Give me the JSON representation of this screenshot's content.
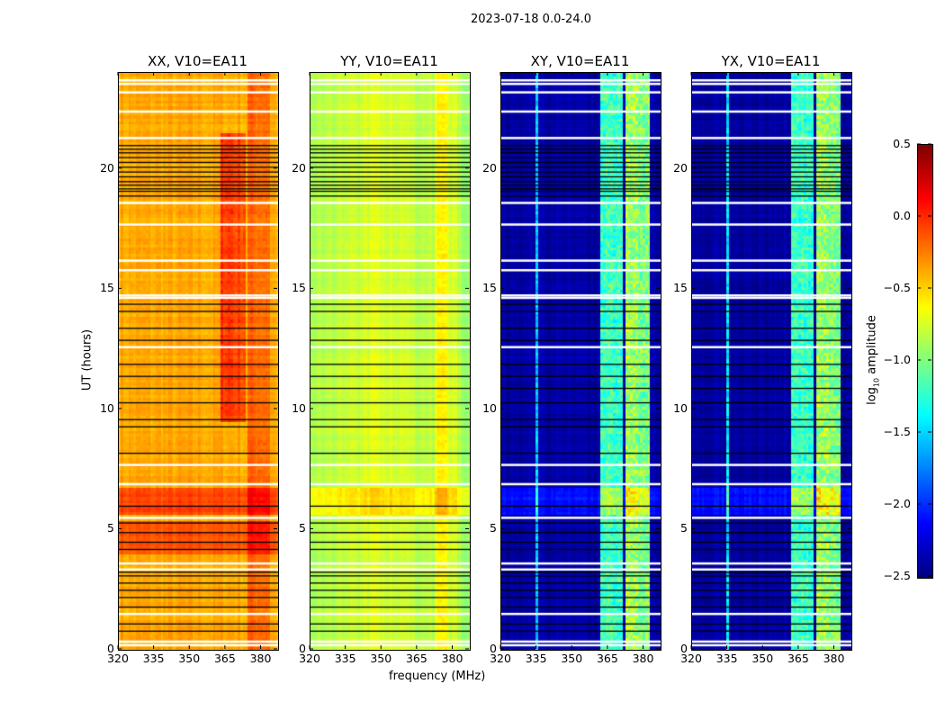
{
  "chart_data": {
    "type": "heatmap",
    "title": "2023-07-18 0.0-24.0",
    "xlabel": "frequency (MHz)",
    "ylabel": "UT (hours)",
    "xlim": [
      320,
      387
    ],
    "ylim": [
      0,
      24
    ],
    "xticks": [
      "320",
      "335",
      "350",
      "365",
      "380"
    ],
    "yticks": [
      "0",
      "5",
      "10",
      "15",
      "20"
    ],
    "colorbar": {
      "label_main": "log",
      "label_sub": "10",
      "label_rest": " amplitude",
      "range": [
        -2.5,
        0.5
      ],
      "ticks": [
        "0.5",
        "0.0",
        "−0.5",
        "−1.0",
        "−1.5",
        "−2.0",
        "−2.5"
      ],
      "colormap": "jet"
    },
    "flagged_white_hours": [
      0.2,
      0.35,
      1.5,
      3.35,
      3.6,
      5.5,
      6.9,
      7.7,
      12.6,
      14.65,
      14.75,
      15.8,
      16.2,
      17.7,
      18.6,
      21.3,
      22.4,
      23.2,
      23.55,
      23.7
    ],
    "flagged_black_hours": [
      0.8,
      1.1,
      1.8,
      2.2,
      2.5,
      2.8,
      3.1,
      3.25,
      4.2,
      4.5,
      4.9,
      5.3,
      6.0,
      8.2,
      9.3,
      9.6,
      10.3,
      10.9,
      11.4,
      11.9,
      12.9,
      13.4,
      14.1,
      14.4,
      18.9,
      19.1,
      19.2,
      19.35,
      19.5,
      19.7,
      19.9,
      20.1,
      20.3,
      20.5,
      20.7,
      20.85,
      21.0
    ],
    "panels": [
      {
        "title": "XX, V10=EA11",
        "base": -0.38,
        "time_offsets": [
          {
            "hours": [
              4.0,
              5.4
            ],
            "delta": 0.25
          },
          {
            "hours": [
              5.6,
              6.8
            ],
            "delta": 0.3
          }
        ],
        "bright_bands": [
          {
            "mhz": [
              363,
              368
            ],
            "delta": 0.35,
            "hours": [
              9.5,
              21.5
            ]
          },
          {
            "mhz": [
              369,
              373
            ],
            "delta": 0.3,
            "hours": [
              9.5,
              21.5
            ]
          },
          {
            "mhz": [
              375,
              383
            ],
            "delta": 0.2,
            "hours": [
              0,
              24
            ]
          }
        ]
      },
      {
        "title": "YY, V10=EA11",
        "base": -0.72,
        "time_offsets": [
          {
            "hours": [
              5.6,
              6.8
            ],
            "delta": 0.22
          }
        ],
        "bright_bands": [
          {
            "mhz": [
              373,
              377
            ],
            "delta": 0.2,
            "hours": [
              0,
              24
            ]
          },
          {
            "mhz": [
              378,
              381
            ],
            "delta": 0.15,
            "hours": [
              0,
              24
            ]
          }
        ]
      },
      {
        "title": "XY, V10=EA11",
        "base": -2.4,
        "time_offsets": [
          {
            "hours": [
              5.6,
              6.8
            ],
            "delta": 0.3
          }
        ],
        "bright_bands": [
          {
            "mhz": [
              362,
              366
            ],
            "delta": 1.2,
            "hours": [
              0,
              24
            ]
          },
          {
            "mhz": [
              367,
              371
            ],
            "delta": 1.2,
            "hours": [
              0,
              24
            ]
          },
          {
            "mhz": [
              373,
              377
            ],
            "delta": 1.5,
            "hours": [
              0,
              24
            ]
          },
          {
            "mhz": [
              378,
              382
            ],
            "delta": 1.4,
            "hours": [
              0,
              24
            ]
          },
          {
            "mhz": [
              335,
              335.6
            ],
            "delta": 0.9,
            "hours": [
              0,
              24
            ]
          }
        ]
      },
      {
        "title": "YX, V10=EA11",
        "base": -2.4,
        "time_offsets": [
          {
            "hours": [
              5.6,
              6.8
            ],
            "delta": 0.3
          }
        ],
        "bright_bands": [
          {
            "mhz": [
              362,
              366
            ],
            "delta": 1.2,
            "hours": [
              0,
              24
            ]
          },
          {
            "mhz": [
              367,
              371
            ],
            "delta": 1.2,
            "hours": [
              0,
              24
            ]
          },
          {
            "mhz": [
              373,
              377
            ],
            "delta": 1.5,
            "hours": [
              0,
              24
            ]
          },
          {
            "mhz": [
              378,
              382
            ],
            "delta": 1.4,
            "hours": [
              0,
              24
            ]
          },
          {
            "mhz": [
              335,
              335.6
            ],
            "delta": 0.9,
            "hours": [
              0,
              24
            ]
          }
        ]
      }
    ]
  }
}
